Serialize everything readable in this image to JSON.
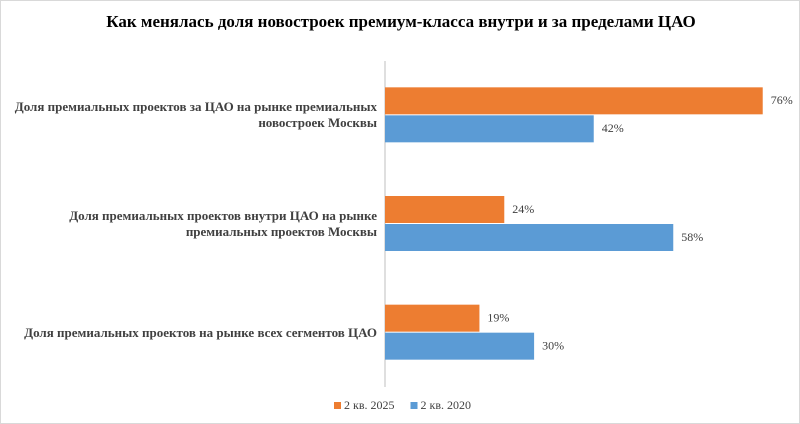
{
  "chart_data": {
    "type": "bar",
    "orientation": "horizontal",
    "title": "Как менялась доля новостроек  премиум-класса  внутри  и за пределами ЦАО",
    "categories": [
      "Доля премиальных проектов за ЦАО на рынке премиальных новостроек Москвы",
      "Доля премиальных проектов внутри ЦАО на рынке премиальных проектов Москвы",
      "Доля премиальных проектов на рынке всех сегментов ЦАО"
    ],
    "series": [
      {
        "name": "2 кв. 2025",
        "color": "#ED7D31",
        "values": [
          76,
          24,
          19
        ],
        "value_labels": [
          "76%",
          "24%",
          "19%"
        ]
      },
      {
        "name": "2 кв. 2020",
        "color": "#5B9BD5",
        "values": [
          42,
          58,
          30
        ],
        "value_labels": [
          "42%",
          "58%",
          "30%"
        ]
      }
    ],
    "legend": "bottom"
  }
}
